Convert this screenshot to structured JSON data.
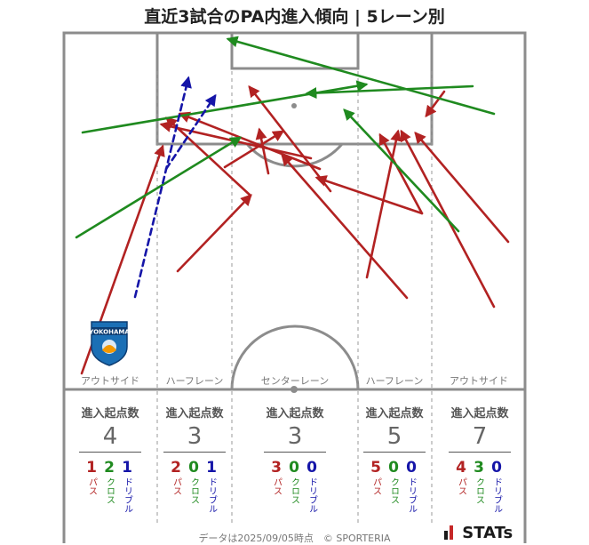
{
  "title": "直近3試合のPA内進入傾向 | 5レーン別",
  "lanes": [
    {
      "name": "アウトサイド",
      "label": "進入起点数",
      "total": "4",
      "pass": "1",
      "cross": "2",
      "dribble": "1"
    },
    {
      "name": "ハーフレーン",
      "label": "進入起点数",
      "total": "3",
      "pass": "2",
      "cross": "0",
      "dribble": "1"
    },
    {
      "name": "センターレーン",
      "label": "進入起点数",
      "total": "3",
      "pass": "3",
      "cross": "0",
      "dribble": "0"
    },
    {
      "name": "ハーフレーン",
      "label": "進入起点数",
      "total": "5",
      "pass": "5",
      "cross": "0",
      "dribble": "0"
    },
    {
      "name": "アウトサイド",
      "label": "進入起点数",
      "total": "7",
      "pass": "4",
      "cross": "3",
      "dribble": "0"
    }
  ],
  "type_labels": {
    "pass": "パス",
    "cross": "クロス",
    "dribble": "ドリブル"
  },
  "colors": {
    "pass": "#b22222",
    "cross": "#1f8a1f",
    "dribble": "#1515a8",
    "line": "#8c8c8c"
  },
  "footer": "データは2025/09/05時点　© SPORTERIA",
  "brand": "STATs",
  "logo_text": "YOKOHAMA",
  "chart_data": {
    "type": "scatter",
    "title": "直近3試合のPA内進入傾向 | 5レーン別",
    "categories": [
      "アウトサイド",
      "ハーフレーン",
      "センターレーン",
      "ハーフレーン",
      "アウトサイド"
    ],
    "series": [
      {
        "name": "パス",
        "values": [
          1,
          2,
          3,
          5,
          4
        ]
      },
      {
        "name": "クロス",
        "values": [
          2,
          0,
          0,
          0,
          3
        ]
      },
      {
        "name": "ドリブル",
        "values": [
          1,
          1,
          0,
          0,
          0
        ]
      }
    ],
    "totals": [
      4,
      3,
      3,
      5,
      7
    ],
    "arrows": [
      {
        "kind": "pass",
        "from": [
          92,
          420
        ],
        "to": [
          183,
          165
        ]
      },
      {
        "kind": "pass",
        "from": [
          200,
          305
        ],
        "to": [
          282,
          220
        ]
      },
      {
        "kind": "pass",
        "from": [
          282,
          220
        ],
        "to": [
          188,
          133
        ]
      },
      {
        "kind": "pass",
        "from": [
          350,
          178
        ],
        "to": [
          182,
          140
        ]
      },
      {
        "kind": "pass",
        "from": [
          360,
          190
        ],
        "to": [
          203,
          128
        ]
      },
      {
        "kind": "pass",
        "from": [
          253,
          188
        ],
        "to": [
          318,
          148
        ]
      },
      {
        "kind": "pass",
        "from": [
          302,
          195
        ],
        "to": [
          292,
          146
        ]
      },
      {
        "kind": "pass",
        "from": [
          372,
          215
        ],
        "to": [
          281,
          98
        ]
      },
      {
        "kind": "pass",
        "from": [
          458,
          335
        ],
        "to": [
          318,
          175
        ]
      },
      {
        "kind": "pass",
        "from": [
          413,
          312
        ],
        "to": [
          448,
          148
        ]
      },
      {
        "kind": "pass",
        "from": [
          475,
          240
        ],
        "to": [
          357,
          200
        ]
      },
      {
        "kind": "pass",
        "from": [
          475,
          240
        ],
        "to": [
          428,
          152
        ]
      },
      {
        "kind": "pass",
        "from": [
          572,
          272
        ],
        "to": [
          468,
          150
        ]
      },
      {
        "kind": "pass",
        "from": [
          556,
          345
        ],
        "to": [
          452,
          148
        ]
      },
      {
        "kind": "pass",
        "from": [
          500,
          103
        ],
        "to": [
          480,
          130
        ]
      },
      {
        "kind": "cross",
        "from": [
          86,
          267
        ],
        "to": [
          270,
          155
        ]
      },
      {
        "kind": "cross",
        "from": [
          93,
          149
        ],
        "to": [
          412,
          95
        ]
      },
      {
        "kind": "cross",
        "from": [
          532,
          97
        ],
        "to": [
          346,
          105
        ]
      },
      {
        "kind": "cross",
        "from": [
          556,
          128
        ],
        "to": [
          257,
          44
        ]
      },
      {
        "kind": "cross",
        "from": [
          516,
          260
        ],
        "to": [
          388,
          124
        ]
      },
      {
        "kind": "dribble",
        "from": [
          152,
          334
        ],
        "to": [
          212,
          88
        ]
      },
      {
        "kind": "dribble",
        "from": [
          187,
          190
        ],
        "to": [
          242,
          108
        ]
      }
    ]
  }
}
